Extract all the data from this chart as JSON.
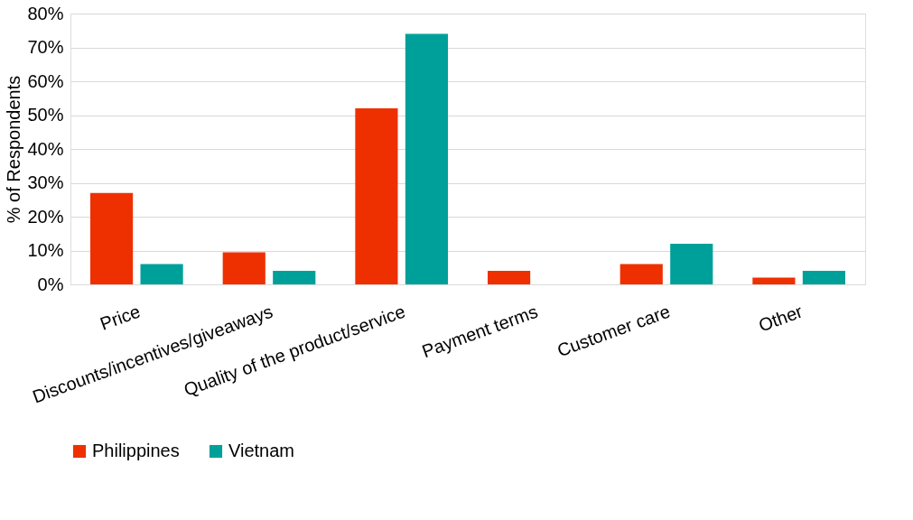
{
  "chart_data": {
    "type": "bar",
    "ylabel": "% of Respondents",
    "categories": [
      "Price",
      "Discounts/incentives/giveaways",
      "Quality of the product/service",
      "Payment terms",
      "Customer care",
      "Other"
    ],
    "series": [
      {
        "name": "Philippines",
        "color": "#ee3000",
        "values": [
          27,
          9.5,
          52,
          4,
          6,
          2
        ]
      },
      {
        "name": "Vietnam",
        "color": "#00a09a",
        "values": [
          6,
          4,
          74,
          0,
          12,
          4
        ]
      }
    ],
    "ylim": [
      0,
      80
    ],
    "yticks": [
      {
        "value": 0,
        "label": "0%"
      },
      {
        "value": 10,
        "label": "10%"
      },
      {
        "value": 20,
        "label": "20%"
      },
      {
        "value": 30,
        "label": "30%"
      },
      {
        "value": 40,
        "label": "40%"
      },
      {
        "value": 50,
        "label": "50%"
      },
      {
        "value": 60,
        "label": "60%"
      },
      {
        "value": 70,
        "label": "70%"
      },
      {
        "value": 80,
        "label": "80%"
      }
    ],
    "grid": "y",
    "legend": "bottom"
  }
}
